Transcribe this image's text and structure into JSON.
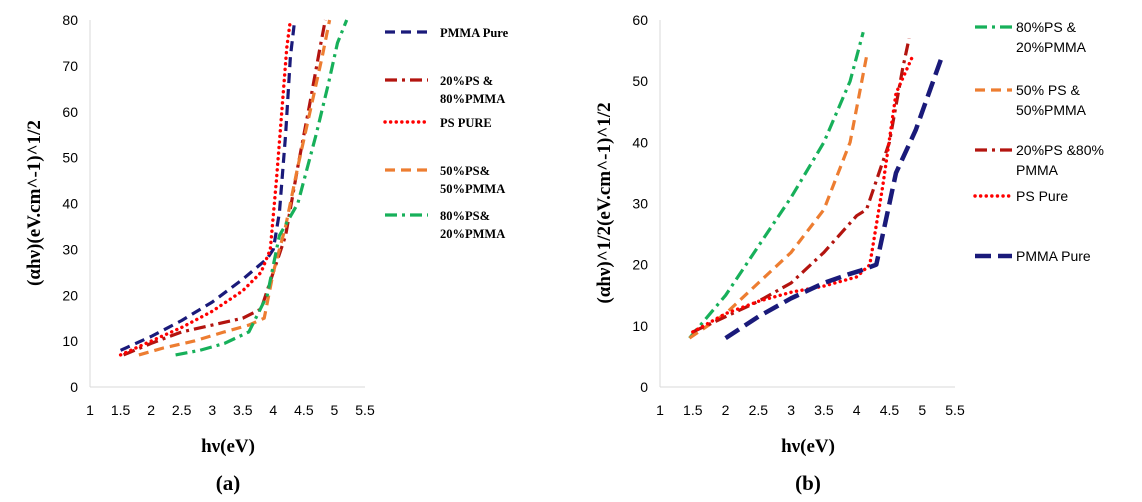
{
  "chart_data": [
    {
      "type": "line",
      "panel_label": "(a)",
      "xlabel": "hν(eV)",
      "ylabel": "(αhν)(eV.cm^-1)^1/2",
      "xlim": [
        1,
        5.5
      ],
      "ylim": [
        0,
        80
      ],
      "x_ticks": [
        "1",
        "1.5",
        "2",
        "2.5",
        "3",
        "3.5",
        "4",
        "4.5",
        "5",
        "5.5"
      ],
      "y_ticks": [
        "0",
        "10",
        "20",
        "30",
        "40",
        "50",
        "60",
        "70",
        "80"
      ],
      "legend_position": "right",
      "series": [
        {
          "name": "PMMA Pure",
          "color": "#1a1a7a",
          "dash": "dash",
          "x": [
            1.5,
            2.0,
            2.5,
            3.0,
            3.5,
            3.9,
            4.0,
            4.1,
            4.2,
            4.28,
            4.35
          ],
          "y": [
            8,
            11,
            14.5,
            18.5,
            23.5,
            28,
            30,
            38,
            55,
            72,
            80
          ]
        },
        {
          "name": "20%PS &\n80%PMMA",
          "color": "#b3140f",
          "dash": "dashdot",
          "x": [
            1.55,
            2.0,
            2.5,
            3.0,
            3.5,
            3.8,
            4.0,
            4.2,
            4.4,
            4.6,
            4.75,
            4.85
          ],
          "y": [
            7,
            9.5,
            12,
            13.5,
            15,
            17,
            25,
            33,
            48,
            62,
            73,
            80
          ]
        },
        {
          "name": "PS PURE",
          "color": "#ff0000",
          "dash": "dot",
          "x": [
            1.5,
            2.0,
            2.5,
            3.0,
            3.5,
            3.8,
            3.95,
            4.05,
            4.15,
            4.22,
            4.28
          ],
          "y": [
            7,
            10,
            13,
            16.5,
            21,
            25,
            30,
            45,
            62,
            74,
            80
          ]
        },
        {
          "name": "50%PS&\n50%PMMA",
          "color": "#ed7d31",
          "dash": "dash",
          "x": [
            1.8,
            2.2,
            2.7,
            3.2,
            3.6,
            3.85,
            4.0,
            4.2,
            4.4,
            4.6,
            4.8,
            4.92
          ],
          "y": [
            7,
            8.5,
            10,
            12,
            13.5,
            15,
            25,
            35,
            48,
            60,
            72,
            80
          ]
        },
        {
          "name": "80%PS&\n20%PMMA",
          "color": "#17b05a",
          "dash": "dashdot",
          "x": [
            2.4,
            2.8,
            3.2,
            3.6,
            3.9,
            4.1,
            4.4,
            4.7,
            4.9,
            5.05,
            5.2
          ],
          "y": [
            7,
            8,
            9.5,
            12,
            20,
            33,
            40,
            55,
            66,
            75,
            80
          ]
        }
      ]
    },
    {
      "type": "line",
      "panel_label": "(b)",
      "xlabel": "hν(eV)",
      "ylabel": "(αhν)^1/2(eV.cm^-1)^1/2",
      "xlim": [
        1,
        5.5
      ],
      "ylim": [
        0,
        60
      ],
      "x_ticks": [
        "1",
        "1.5",
        "2",
        "2.5",
        "3",
        "3.5",
        "4",
        "4.5",
        "5",
        "5.5"
      ],
      "y_ticks": [
        "0",
        "10",
        "20",
        "30",
        "40",
        "50",
        "60"
      ],
      "legend_position": "right",
      "series": [
        {
          "name": "80%PS &\n20%PMMA",
          "color": "#17b05a",
          "dash": "dashdot",
          "x": [
            1.45,
            2.0,
            2.5,
            3.0,
            3.5,
            3.9,
            4.1
          ],
          "y": [
            8,
            15,
            23,
            31,
            40,
            50,
            58
          ]
        },
        {
          "name": "50% PS &\n50%PMMA",
          "color": "#ed7d31",
          "dash": "dash",
          "x": [
            1.45,
            2.0,
            2.5,
            3.0,
            3.5,
            3.9,
            4.15
          ],
          "y": [
            8,
            12,
            17,
            22,
            29,
            40,
            54
          ]
        },
        {
          "name": "20%PS &80%\nPMMA",
          "color": "#b3140f",
          "dash": "dashdot",
          "x": [
            1.5,
            2.0,
            2.5,
            3.0,
            3.5,
            4.0,
            4.15,
            4.5,
            4.7,
            4.8
          ],
          "y": [
            9,
            11.5,
            14,
            17,
            22,
            28,
            29,
            40,
            52,
            57
          ]
        },
        {
          "name": "PS Pure",
          "color": "#ff0000",
          "dash": "dot",
          "x": [
            1.5,
            2.0,
            2.5,
            3.0,
            3.5,
            4.0,
            4.2,
            4.4,
            4.6,
            4.85
          ],
          "y": [
            9,
            12,
            14,
            15.5,
            16.5,
            18,
            20,
            33,
            48,
            54
          ]
        },
        {
          "name": "PMMA Pure",
          "color": "#1a1a7a",
          "dash": "longdash",
          "x": [
            2.0,
            2.5,
            3.0,
            3.5,
            3.9,
            4.05,
            4.3,
            4.6,
            4.9,
            5.3
          ],
          "y": [
            8,
            11.5,
            14.5,
            17,
            18.5,
            19,
            20,
            35,
            42,
            54
          ]
        }
      ]
    }
  ]
}
